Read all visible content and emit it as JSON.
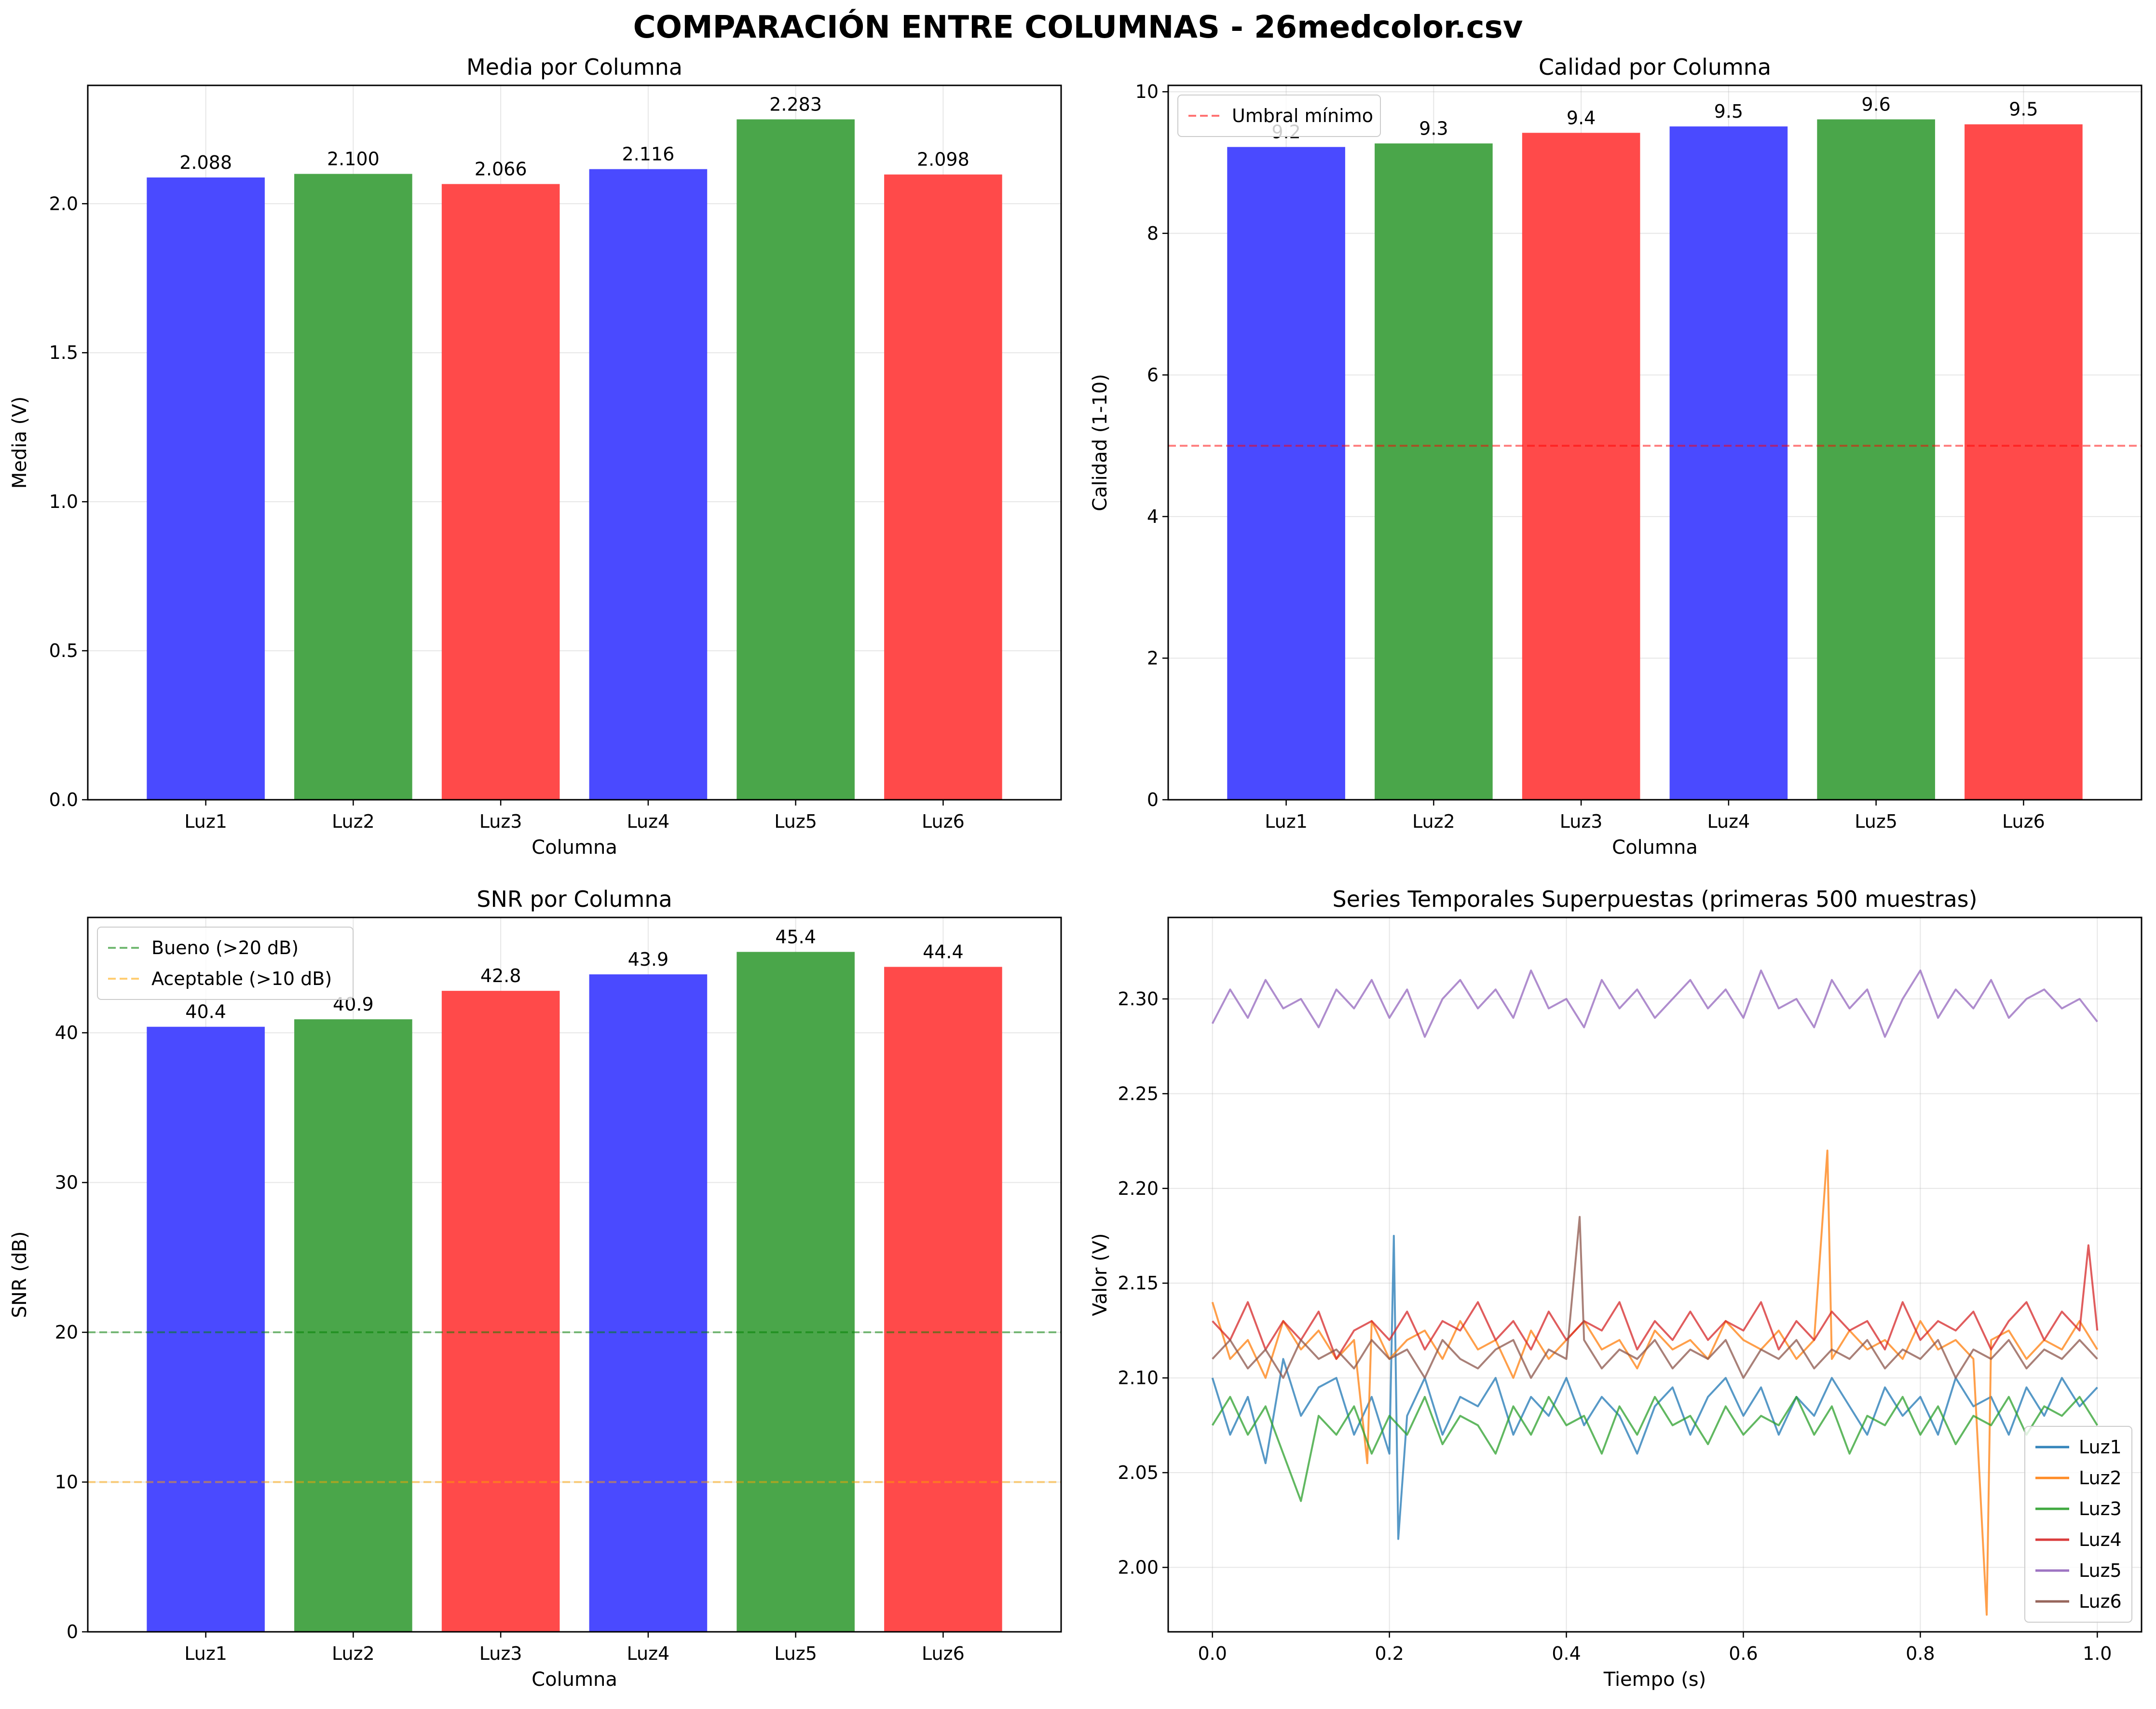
{
  "figure": {
    "title": "COMPARACIÓN ENTRE COLUMNAS - 26medcolor.csv"
  },
  "chart_data": [
    {
      "type": "bar",
      "title": "Media por Columna",
      "xlabel": "Columna",
      "ylabel": "Media (V)",
      "categories": [
        "Luz1",
        "Luz2",
        "Luz3",
        "Luz4",
        "Luz5",
        "Luz6"
      ],
      "values": [
        2.088,
        2.1,
        2.066,
        2.116,
        2.283,
        2.098
      ],
      "value_labels": [
        "2.088",
        "2.100",
        "2.066",
        "2.116",
        "2.283",
        "2.098"
      ],
      "bar_colors": [
        "#4a4aff",
        "#4aa64a",
        "#ff4a4a",
        "#4a4aff",
        "#4aa64a",
        "#ff4a4a"
      ],
      "ylim": [
        0,
        2.397
      ],
      "yticks": [
        0,
        0.5,
        1.0,
        1.5,
        2.0
      ],
      "ytick_labels": [
        "0.0",
        "0.5",
        "1.0",
        "1.5",
        "2.0"
      ],
      "grid": true,
      "reference_lines": []
    },
    {
      "type": "bar",
      "title": "Calidad por Columna",
      "xlabel": "Columna",
      "ylabel": "Calidad (1-10)",
      "categories": [
        "Luz1",
        "Luz2",
        "Luz3",
        "Luz4",
        "Luz5",
        "Luz6"
      ],
      "values": [
        9.22,
        9.27,
        9.42,
        9.51,
        9.61,
        9.54
      ],
      "value_labels": [
        "9.2",
        "9.3",
        "9.4",
        "9.5",
        "9.6",
        "9.5"
      ],
      "bar_colors": [
        "#4a4aff",
        "#4aa64a",
        "#ff4a4a",
        "#4a4aff",
        "#4aa64a",
        "#ff4a4a"
      ],
      "ylim": [
        0,
        10.09
      ],
      "yticks": [
        0,
        2,
        4,
        6,
        8,
        10
      ],
      "ytick_labels": [
        "0",
        "2",
        "4",
        "6",
        "8",
        "10"
      ],
      "grid": true,
      "reference_lines": [
        {
          "y": 5,
          "label": "Umbral mínimo",
          "color": "#ff0000"
        }
      ],
      "legend": "upper-left"
    },
    {
      "type": "bar",
      "title": "SNR por Columna",
      "xlabel": "Columna",
      "ylabel": "SNR (dB)",
      "categories": [
        "Luz1",
        "Luz2",
        "Luz3",
        "Luz4",
        "Luz5",
        "Luz6"
      ],
      "values": [
        40.4,
        40.9,
        42.8,
        43.9,
        45.4,
        44.4
      ],
      "value_labels": [
        "40.4",
        "40.9",
        "42.8",
        "43.9",
        "45.4",
        "44.4"
      ],
      "bar_colors": [
        "#4a4aff",
        "#4aa64a",
        "#ff4a4a",
        "#4a4aff",
        "#4aa64a",
        "#ff4a4a"
      ],
      "ylim": [
        0,
        47.7
      ],
      "yticks": [
        0,
        10,
        20,
        30,
        40
      ],
      "ytick_labels": [
        "0",
        "10",
        "20",
        "30",
        "40"
      ],
      "grid": true,
      "reference_lines": [
        {
          "y": 20,
          "label": "Bueno (>20 dB)",
          "color": "#008000"
        },
        {
          "y": 10,
          "label": "Aceptable (>10 dB)",
          "color": "#ffa500"
        }
      ],
      "legend": "upper-left"
    },
    {
      "type": "line",
      "title": "Series Temporales Superpuestas (primeras 500 muestras)",
      "xlabel": "Tiempo (s)",
      "ylabel": "Valor (V)",
      "xlim": [
        -0.05,
        1.05
      ],
      "ylim": [
        1.966,
        2.343
      ],
      "xticks": [
        0.0,
        0.2,
        0.4,
        0.6,
        0.8,
        1.0
      ],
      "xtick_labels": [
        "0.0",
        "0.2",
        "0.4",
        "0.6",
        "0.8",
        "1.0"
      ],
      "yticks": [
        2.0,
        2.05,
        2.1,
        2.15,
        2.2,
        2.25,
        2.3
      ],
      "ytick_labels": [
        "2.00",
        "2.05",
        "2.10",
        "2.15",
        "2.20",
        "2.25",
        "2.30"
      ],
      "grid": true,
      "legend": "lower-right",
      "series": [
        {
          "name": "Luz1",
          "color": "#1f77b4",
          "x": [
            0.0,
            0.02,
            0.04,
            0.06,
            0.08,
            0.1,
            0.12,
            0.14,
            0.16,
            0.18,
            0.2,
            0.205,
            0.21,
            0.22,
            0.24,
            0.26,
            0.28,
            0.3,
            0.32,
            0.34,
            0.36,
            0.38,
            0.4,
            0.42,
            0.44,
            0.46,
            0.48,
            0.5,
            0.52,
            0.54,
            0.56,
            0.58,
            0.6,
            0.62,
            0.64,
            0.66,
            0.68,
            0.7,
            0.72,
            0.74,
            0.76,
            0.78,
            0.8,
            0.82,
            0.84,
            0.86,
            0.88,
            0.9,
            0.92,
            0.94,
            0.96,
            0.98,
            1.0
          ],
          "y": [
            2.1,
            2.07,
            2.09,
            2.055,
            2.11,
            2.08,
            2.095,
            2.1,
            2.07,
            2.09,
            2.06,
            2.175,
            2.015,
            2.08,
            2.1,
            2.07,
            2.09,
            2.085,
            2.1,
            2.07,
            2.09,
            2.08,
            2.1,
            2.075,
            2.09,
            2.08,
            2.06,
            2.085,
            2.095,
            2.07,
            2.09,
            2.1,
            2.08,
            2.095,
            2.07,
            2.09,
            2.08,
            2.1,
            2.085,
            2.07,
            2.095,
            2.08,
            2.09,
            2.07,
            2.1,
            2.085,
            2.09,
            2.07,
            2.095,
            2.08,
            2.1,
            2.085,
            2.095
          ]
        },
        {
          "name": "Luz2",
          "color": "#ff7f0e",
          "x": [
            0.0,
            0.02,
            0.04,
            0.06,
            0.08,
            0.1,
            0.12,
            0.14,
            0.16,
            0.175,
            0.18,
            0.2,
            0.22,
            0.24,
            0.26,
            0.28,
            0.3,
            0.32,
            0.34,
            0.36,
            0.38,
            0.4,
            0.42,
            0.44,
            0.46,
            0.48,
            0.5,
            0.52,
            0.54,
            0.56,
            0.58,
            0.6,
            0.62,
            0.64,
            0.66,
            0.68,
            0.695,
            0.7,
            0.72,
            0.74,
            0.76,
            0.78,
            0.8,
            0.82,
            0.84,
            0.86,
            0.875,
            0.88,
            0.9,
            0.92,
            0.94,
            0.96,
            0.98,
            1.0
          ],
          "y": [
            2.14,
            2.11,
            2.12,
            2.1,
            2.13,
            2.115,
            2.125,
            2.11,
            2.12,
            2.055,
            2.13,
            2.11,
            2.12,
            2.125,
            2.11,
            2.13,
            2.115,
            2.12,
            2.1,
            2.125,
            2.11,
            2.12,
            2.13,
            2.115,
            2.12,
            2.105,
            2.125,
            2.115,
            2.12,
            2.11,
            2.13,
            2.12,
            2.115,
            2.125,
            2.11,
            2.12,
            2.22,
            2.11,
            2.125,
            2.115,
            2.12,
            2.11,
            2.13,
            2.115,
            2.12,
            2.11,
            1.975,
            2.12,
            2.125,
            2.11,
            2.12,
            2.115,
            2.13,
            2.115
          ]
        },
        {
          "name": "Luz3",
          "color": "#2ca02c",
          "x": [
            0.0,
            0.02,
            0.04,
            0.06,
            0.08,
            0.1,
            0.12,
            0.14,
            0.16,
            0.18,
            0.2,
            0.22,
            0.24,
            0.26,
            0.28,
            0.3,
            0.32,
            0.34,
            0.36,
            0.38,
            0.4,
            0.42,
            0.44,
            0.46,
            0.48,
            0.5,
            0.52,
            0.54,
            0.56,
            0.58,
            0.6,
            0.62,
            0.64,
            0.66,
            0.68,
            0.7,
            0.72,
            0.74,
            0.76,
            0.78,
            0.8,
            0.82,
            0.84,
            0.86,
            0.88,
            0.9,
            0.92,
            0.94,
            0.96,
            0.98,
            1.0
          ],
          "y": [
            2.075,
            2.09,
            2.07,
            2.085,
            2.06,
            2.035,
            2.08,
            2.07,
            2.085,
            2.06,
            2.08,
            2.07,
            2.09,
            2.065,
            2.08,
            2.075,
            2.06,
            2.085,
            2.07,
            2.09,
            2.075,
            2.08,
            2.06,
            2.085,
            2.07,
            2.09,
            2.075,
            2.08,
            2.065,
            2.085,
            2.07,
            2.08,
            2.075,
            2.09,
            2.07,
            2.085,
            2.06,
            2.08,
            2.075,
            2.09,
            2.07,
            2.085,
            2.065,
            2.08,
            2.075,
            2.09,
            2.07,
            2.085,
            2.08,
            2.09,
            2.075
          ]
        },
        {
          "name": "Luz4",
          "color": "#d62728",
          "x": [
            0.0,
            0.02,
            0.04,
            0.06,
            0.08,
            0.1,
            0.12,
            0.14,
            0.16,
            0.18,
            0.2,
            0.22,
            0.24,
            0.26,
            0.28,
            0.3,
            0.32,
            0.34,
            0.36,
            0.38,
            0.4,
            0.42,
            0.44,
            0.46,
            0.48,
            0.5,
            0.52,
            0.54,
            0.56,
            0.58,
            0.6,
            0.62,
            0.64,
            0.66,
            0.68,
            0.7,
            0.72,
            0.74,
            0.76,
            0.78,
            0.8,
            0.82,
            0.84,
            0.86,
            0.88,
            0.9,
            0.92,
            0.94,
            0.96,
            0.98,
            0.99,
            1.0
          ],
          "y": [
            2.13,
            2.12,
            2.14,
            2.115,
            2.13,
            2.12,
            2.135,
            2.11,
            2.125,
            2.13,
            2.12,
            2.135,
            2.115,
            2.13,
            2.125,
            2.14,
            2.12,
            2.13,
            2.115,
            2.135,
            2.12,
            2.13,
            2.125,
            2.14,
            2.115,
            2.13,
            2.12,
            2.135,
            2.12,
            2.13,
            2.125,
            2.14,
            2.115,
            2.13,
            2.12,
            2.135,
            2.125,
            2.13,
            2.115,
            2.14,
            2.12,
            2.13,
            2.125,
            2.135,
            2.115,
            2.13,
            2.14,
            2.12,
            2.135,
            2.125,
            2.17,
            2.125
          ]
        },
        {
          "name": "Luz5",
          "color": "#9467bd",
          "x": [
            0.0,
            0.02,
            0.04,
            0.06,
            0.08,
            0.1,
            0.12,
            0.14,
            0.16,
            0.18,
            0.2,
            0.22,
            0.24,
            0.26,
            0.28,
            0.3,
            0.32,
            0.34,
            0.36,
            0.38,
            0.4,
            0.42,
            0.44,
            0.46,
            0.48,
            0.5,
            0.52,
            0.54,
            0.56,
            0.58,
            0.6,
            0.62,
            0.64,
            0.66,
            0.68,
            0.7,
            0.72,
            0.74,
            0.76,
            0.78,
            0.8,
            0.82,
            0.84,
            0.86,
            0.88,
            0.9,
            0.92,
            0.94,
            0.96,
            0.98,
            1.0
          ],
          "y": [
            2.287,
            2.305,
            2.29,
            2.31,
            2.295,
            2.3,
            2.285,
            2.305,
            2.295,
            2.31,
            2.29,
            2.305,
            2.28,
            2.3,
            2.31,
            2.295,
            2.305,
            2.29,
            2.315,
            2.295,
            2.3,
            2.285,
            2.31,
            2.295,
            2.305,
            2.29,
            2.3,
            2.31,
            2.295,
            2.305,
            2.29,
            2.315,
            2.295,
            2.3,
            2.285,
            2.31,
            2.295,
            2.305,
            2.28,
            2.3,
            2.315,
            2.29,
            2.305,
            2.295,
            2.31,
            2.29,
            2.3,
            2.305,
            2.295,
            2.3,
            2.288
          ]
        },
        {
          "name": "Luz6",
          "color": "#8c564b",
          "x": [
            0.0,
            0.02,
            0.04,
            0.06,
            0.08,
            0.1,
            0.12,
            0.14,
            0.16,
            0.18,
            0.2,
            0.22,
            0.24,
            0.26,
            0.28,
            0.3,
            0.32,
            0.34,
            0.36,
            0.38,
            0.4,
            0.415,
            0.42,
            0.44,
            0.46,
            0.48,
            0.5,
            0.52,
            0.54,
            0.56,
            0.58,
            0.6,
            0.62,
            0.64,
            0.66,
            0.68,
            0.7,
            0.72,
            0.74,
            0.76,
            0.78,
            0.8,
            0.82,
            0.84,
            0.86,
            0.88,
            0.9,
            0.92,
            0.94,
            0.96,
            0.98,
            1.0
          ],
          "y": [
            2.11,
            2.12,
            2.105,
            2.115,
            2.1,
            2.12,
            2.11,
            2.115,
            2.105,
            2.12,
            2.11,
            2.115,
            2.1,
            2.12,
            2.11,
            2.105,
            2.115,
            2.12,
            2.1,
            2.115,
            2.11,
            2.185,
            2.12,
            2.105,
            2.115,
            2.11,
            2.12,
            2.105,
            2.115,
            2.11,
            2.12,
            2.1,
            2.115,
            2.11,
            2.12,
            2.105,
            2.115,
            2.11,
            2.12,
            2.105,
            2.115,
            2.11,
            2.12,
            2.1,
            2.115,
            2.11,
            2.12,
            2.105,
            2.115,
            2.11,
            2.12,
            2.11
          ]
        }
      ]
    }
  ]
}
